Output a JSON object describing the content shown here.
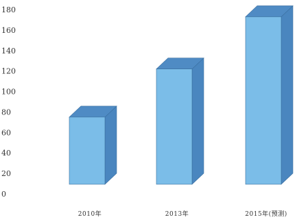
{
  "chart_data": {
    "type": "bar",
    "style": "3d-column",
    "categories": [
      "2010年",
      "2013年",
      "2015年(预测)"
    ],
    "values": [
      75,
      122,
      173
    ],
    "ylim": [
      0,
      180
    ],
    "yticks": [
      0,
      20,
      40,
      60,
      80,
      100,
      120,
      140,
      160,
      180
    ],
    "ytick_labels": [
      "0",
      "20",
      "40",
      "60",
      "80",
      "100",
      "120",
      "140",
      "160",
      "180"
    ],
    "grid": false,
    "legend": "none",
    "title": "",
    "xlabel": "",
    "ylabel": "",
    "colors": {
      "front": "#7bbde8",
      "side": "#4a86bf",
      "top": "#4f8bc4",
      "edge": "#3a6f9f"
    }
  }
}
